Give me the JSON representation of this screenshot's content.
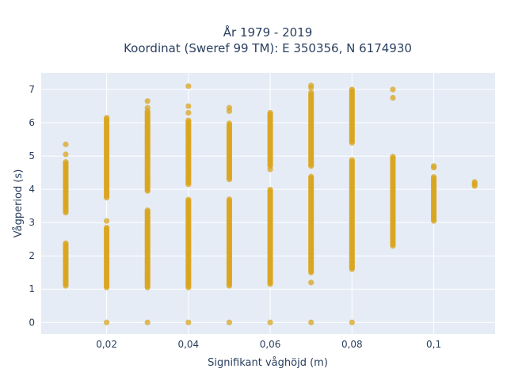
{
  "chart_data": {
    "type": "scatter",
    "title_line1": "År 1979 - 2019",
    "title_line2": "Koordinat (Sweref 99 TM): E 350356, N 6174930",
    "xlabel": "Signifikant våghöjd (m)",
    "ylabel": "Vågperiod (s)",
    "xlim": [
      0.004,
      0.115
    ],
    "ylim": [
      -0.35,
      7.5
    ],
    "x_ticks": [
      0.02,
      0.04,
      0.06,
      0.08,
      0.1
    ],
    "x_tick_labels": [
      "0,02",
      "0,04",
      "0,06",
      "0,08",
      "0,1"
    ],
    "y_ticks": [
      0,
      1,
      2,
      3,
      4,
      5,
      6,
      7
    ],
    "y_tick_labels": [
      "0",
      "1",
      "2",
      "3",
      "4",
      "5",
      "6",
      "7"
    ],
    "grid": true,
    "marker_color": "#DAA520",
    "point_columns": [
      {
        "x": 0.01,
        "segments": [
          [
            1.1,
            2.4
          ],
          [
            3.3,
            4.85
          ]
        ],
        "points": [
          5.05,
          5.35
        ]
      },
      {
        "x": 0.02,
        "segments": [
          [
            1.05,
            2.85
          ],
          [
            3.75,
            6.15
          ]
        ],
        "points": [
          0,
          3.05
        ]
      },
      {
        "x": 0.03,
        "segments": [
          [
            1.05,
            3.4
          ],
          [
            3.95,
            6.35
          ]
        ],
        "points": [
          0,
          6.45,
          6.65
        ]
      },
      {
        "x": 0.04,
        "segments": [
          [
            1.05,
            3.7
          ],
          [
            4.15,
            6.1
          ]
        ],
        "points": [
          0,
          6.3,
          6.5,
          7.1
        ]
      },
      {
        "x": 0.05,
        "segments": [
          [
            1.1,
            3.7
          ],
          [
            4.3,
            6.0
          ]
        ],
        "points": [
          0,
          6.35,
          6.45
        ]
      },
      {
        "x": 0.06,
        "segments": [
          [
            1.15,
            4.0
          ],
          [
            4.7,
            6.3
          ]
        ],
        "points": [
          0,
          4.6
        ]
      },
      {
        "x": 0.07,
        "segments": [
          [
            1.5,
            4.4
          ],
          [
            4.7,
            6.9
          ]
        ],
        "points": [
          0,
          1.2,
          7.05,
          7.12
        ]
      },
      {
        "x": 0.08,
        "segments": [
          [
            1.6,
            4.9
          ],
          [
            5.4,
            7.0
          ]
        ],
        "points": [
          0
        ]
      },
      {
        "x": 0.09,
        "segments": [
          [
            2.3,
            5.0
          ]
        ],
        "points": [
          6.75,
          7.0
        ]
      },
      {
        "x": 0.1,
        "segments": [
          [
            3.05,
            4.4
          ]
        ],
        "points": [
          4.65,
          4.7
        ]
      },
      {
        "x": 0.11,
        "segments": [
          [
            4.1,
            4.25
          ]
        ],
        "points": []
      }
    ]
  }
}
